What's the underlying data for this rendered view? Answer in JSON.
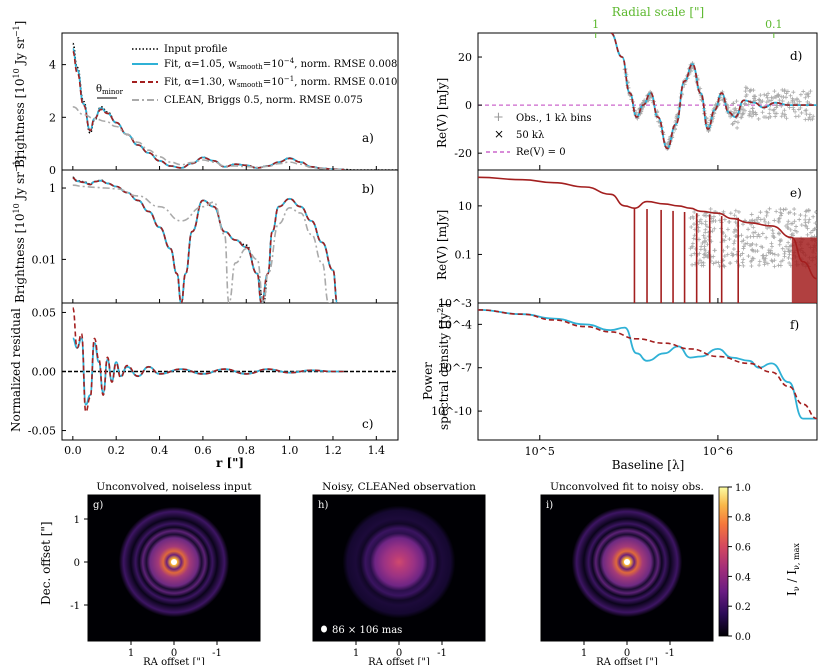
{
  "chart_data": [
    {
      "panel": "a",
      "type": "line",
      "ylabel": "Brightness [10^10 Jy sr^-1]",
      "xlim": [
        -0.05,
        1.5
      ],
      "ylim": [
        0,
        5.2
      ],
      "yticks": [
        "0",
        "2",
        "4"
      ],
      "annotation": "θminor",
      "legend": [
        {
          "label": "Input profile",
          "color": "#000000",
          "style": "dotted"
        },
        {
          "label": "Fit, α=1.05, wsmooth=10^-4, norm. RMSE 0.008",
          "color": "#2fb1d6",
          "style": "solid"
        },
        {
          "label": "Fit, α=1.30, wsmooth=10^-1, norm. RMSE 0.010",
          "color": "#a31f1f",
          "style": "dashed"
        },
        {
          "label": "CLEAN, Briggs 0.5, norm. RMSE 0.075",
          "color": "#aaaaaa",
          "style": "dashdot"
        }
      ],
      "series": [
        {
          "name": "Input profile",
          "x": [
            0.0,
            0.02,
            0.05,
            0.08,
            0.1,
            0.13,
            0.16,
            0.2,
            0.25,
            0.3,
            0.35,
            0.4,
            0.45,
            0.5,
            0.55,
            0.6,
            0.65,
            0.7,
            0.75,
            0.8,
            0.85,
            0.9,
            0.95,
            1.0,
            1.05,
            1.1,
            1.15,
            1.2,
            1.25,
            1.3,
            1.4,
            1.5
          ],
          "y": [
            4.8,
            3.9,
            2.6,
            1.4,
            1.9,
            2.4,
            2.2,
            1.8,
            1.35,
            0.95,
            0.65,
            0.35,
            0.15,
            0.08,
            0.25,
            0.48,
            0.35,
            0.12,
            0.22,
            0.18,
            0.08,
            0.15,
            0.3,
            0.45,
            0.3,
            0.12,
            0.06,
            0.03,
            0.02,
            0.0,
            0.0,
            0.0
          ]
        },
        {
          "name": "Fit, α=1.05",
          "x": [
            0.0,
            0.02,
            0.05,
            0.08,
            0.1,
            0.13,
            0.16,
            0.2,
            0.25,
            0.3,
            0.35,
            0.4,
            0.45,
            0.5,
            0.55,
            0.6,
            0.65,
            0.7,
            0.75,
            0.8,
            0.85,
            0.9,
            0.95,
            1.0,
            1.05,
            1.1,
            1.15,
            1.2,
            1.25
          ],
          "y": [
            4.6,
            3.8,
            2.5,
            1.5,
            1.95,
            2.35,
            2.15,
            1.8,
            1.35,
            0.95,
            0.65,
            0.35,
            0.15,
            0.08,
            0.25,
            0.48,
            0.35,
            0.12,
            0.22,
            0.18,
            0.08,
            0.15,
            0.3,
            0.45,
            0.3,
            0.12,
            0.06,
            0.03,
            0.02
          ]
        },
        {
          "name": "Fit, α=1.30",
          "x": [
            0.0,
            0.02,
            0.05,
            0.08,
            0.1,
            0.13,
            0.16,
            0.2,
            0.25,
            0.3,
            0.35,
            0.4,
            0.45,
            0.5,
            0.55,
            0.6,
            0.65,
            0.7,
            0.75,
            0.8,
            0.85,
            0.9,
            0.95,
            1.0,
            1.05,
            1.1,
            1.15,
            1.2,
            1.25
          ],
          "y": [
            4.5,
            3.7,
            2.45,
            1.5,
            1.95,
            2.3,
            2.15,
            1.8,
            1.35,
            0.95,
            0.65,
            0.35,
            0.15,
            0.08,
            0.25,
            0.47,
            0.35,
            0.12,
            0.22,
            0.18,
            0.08,
            0.15,
            0.3,
            0.44,
            0.3,
            0.12,
            0.06,
            0.03,
            0.02
          ]
        },
        {
          "name": "CLEAN",
          "x": [
            0.0,
            0.05,
            0.1,
            0.15,
            0.2,
            0.25,
            0.3,
            0.35,
            0.4,
            0.45,
            0.5,
            0.55,
            0.6,
            0.65,
            0.7,
            0.75,
            0.8,
            0.85,
            0.9,
            0.95,
            1.0,
            1.05,
            1.1,
            1.15,
            1.2,
            1.25
          ],
          "y": [
            2.4,
            2.1,
            1.95,
            1.85,
            1.65,
            1.35,
            1.05,
            0.75,
            0.5,
            0.3,
            0.2,
            0.28,
            0.38,
            0.3,
            0.15,
            0.15,
            0.13,
            0.1,
            0.14,
            0.24,
            0.3,
            0.22,
            0.1,
            0.05,
            0.02,
            0.01
          ]
        }
      ]
    },
    {
      "panel": "b",
      "type": "line",
      "ylabel": "Brightness [10^10 Jy sr^-1]",
      "yscale": "log",
      "ylim": [
        0.0006,
        3.2
      ],
      "yticks": [
        "1",
        "0.01"
      ],
      "series": [
        {
          "name": "Input profile",
          "x": [
            0.0,
            0.02,
            0.05,
            0.08,
            0.1,
            0.13,
            0.16,
            0.2,
            0.25,
            0.3,
            0.35,
            0.4,
            0.45,
            0.48,
            0.5,
            0.52,
            0.55,
            0.6,
            0.65,
            0.7,
            0.75,
            0.8,
            0.85,
            0.88,
            0.9,
            0.92,
            0.95,
            1.0,
            1.05,
            1.1,
            1.15,
            1.2,
            1.22
          ],
          "y": [
            2.0,
            1.6,
            1.5,
            1.3,
            1.5,
            1.65,
            1.35,
            1.1,
            0.75,
            0.45,
            0.22,
            0.08,
            0.02,
            0.004,
            0.0006,
            0.004,
            0.06,
            0.45,
            0.3,
            0.06,
            0.035,
            0.025,
            0.004,
            0.0006,
            0.004,
            0.06,
            0.3,
            0.5,
            0.3,
            0.12,
            0.03,
            0.005,
            0.0006
          ]
        },
        {
          "name": "Fit, α=1.05",
          "x": [
            0.0,
            0.02,
            0.05,
            0.08,
            0.1,
            0.13,
            0.16,
            0.2,
            0.25,
            0.3,
            0.35,
            0.4,
            0.45,
            0.48,
            0.5,
            0.52,
            0.55,
            0.6,
            0.65,
            0.7,
            0.75,
            0.8,
            0.85,
            0.87,
            0.9,
            0.92,
            0.95,
            1.0,
            1.05,
            1.1,
            1.15,
            1.2,
            1.22
          ],
          "y": [
            1.9,
            1.55,
            1.45,
            1.25,
            1.5,
            1.6,
            1.35,
            1.1,
            0.75,
            0.45,
            0.22,
            0.08,
            0.02,
            0.004,
            0.0006,
            0.004,
            0.06,
            0.45,
            0.3,
            0.06,
            0.035,
            0.022,
            0.004,
            0.0006,
            0.004,
            0.06,
            0.3,
            0.5,
            0.3,
            0.12,
            0.03,
            0.005,
            0.0006
          ]
        },
        {
          "name": "Fit, α=1.30",
          "x": [
            0.0,
            0.02,
            0.05,
            0.08,
            0.1,
            0.13,
            0.16,
            0.2,
            0.25,
            0.3,
            0.35,
            0.4,
            0.45,
            0.48,
            0.5,
            0.52,
            0.55,
            0.6,
            0.65,
            0.7,
            0.75,
            0.8,
            0.85,
            0.87,
            0.9,
            0.92,
            0.95,
            1.0,
            1.05,
            1.1,
            1.15,
            1.2,
            1.22
          ],
          "y": [
            1.9,
            1.55,
            1.45,
            1.25,
            1.5,
            1.6,
            1.35,
            1.1,
            0.75,
            0.45,
            0.22,
            0.08,
            0.02,
            0.004,
            0.0006,
            0.004,
            0.06,
            0.45,
            0.3,
            0.06,
            0.035,
            0.022,
            0.004,
            0.0006,
            0.004,
            0.06,
            0.3,
            0.5,
            0.3,
            0.12,
            0.03,
            0.005,
            0.0006
          ]
        },
        {
          "name": "CLEAN",
          "x": [
            0.0,
            0.05,
            0.1,
            0.15,
            0.2,
            0.3,
            0.4,
            0.5,
            0.6,
            0.65,
            0.7,
            0.72,
            0.75,
            0.8,
            0.85,
            0.88,
            0.9,
            0.95,
            1.0,
            1.05,
            1.1,
            1.15,
            1.18,
            1.2
          ],
          "y": [
            1.2,
            1.1,
            1.05,
            1.0,
            0.95,
            0.6,
            0.3,
            0.12,
            0.3,
            0.4,
            0.05,
            0.0006,
            0.008,
            0.02,
            0.01,
            0.0006,
            0.004,
            0.1,
            0.28,
            0.2,
            0.05,
            0.008,
            0.0006,
            0.0006
          ]
        }
      ]
    },
    {
      "panel": "c",
      "type": "line",
      "xlabel": "r [\"]",
      "ylabel": "Normalized residual",
      "ylim": [
        -0.058,
        0.058
      ],
      "yticks": [
        "0.05",
        "0.00",
        "-0.05"
      ],
      "xticks": [
        "0.0",
        "0.2",
        "0.4",
        "0.6",
        "0.8",
        "1.0",
        "1.2",
        "1.4"
      ],
      "series": [
        {
          "name": "Fit, α=1.05",
          "x": [
            0.0,
            0.02,
            0.04,
            0.06,
            0.08,
            0.1,
            0.12,
            0.14,
            0.16,
            0.18,
            0.2,
            0.22,
            0.25,
            0.3,
            0.35,
            0.4,
            0.5,
            0.6,
            0.7,
            0.8,
            0.9,
            1.0,
            1.1,
            1.2,
            1.25
          ],
          "y": [
            0.028,
            0.02,
            0.028,
            -0.028,
            -0.02,
            0.024,
            0.008,
            -0.018,
            0.01,
            -0.008,
            0.008,
            -0.004,
            0.004,
            -0.004,
            0.004,
            -0.002,
            0.002,
            -0.002,
            0.002,
            -0.002,
            0.002,
            -0.001,
            0.001,
            0.0,
            0.0
          ]
        },
        {
          "name": "Fit, α=1.30",
          "x": [
            0.0,
            0.02,
            0.04,
            0.06,
            0.08,
            0.1,
            0.12,
            0.14,
            0.16,
            0.18,
            0.2,
            0.22,
            0.25,
            0.3,
            0.35,
            0.4,
            0.5,
            0.6,
            0.7,
            0.8,
            0.9,
            1.0,
            1.1,
            1.2,
            1.25
          ],
          "y": [
            0.054,
            0.02,
            0.032,
            -0.034,
            -0.022,
            0.028,
            0.01,
            -0.02,
            0.012,
            -0.009,
            0.007,
            -0.005,
            0.005,
            -0.004,
            0.004,
            -0.002,
            0.002,
            -0.002,
            0.002,
            -0.002,
            0.002,
            -0.001,
            0.001,
            0.0,
            0.0
          ]
        }
      ],
      "reference_line": 0.0
    },
    {
      "panel": "d",
      "type": "scatter",
      "ylabel": "Re(V) [mJy]",
      "top_axis_label": "Radial scale [\"]",
      "top_ticks": [
        "1",
        "0.1"
      ],
      "yticks": [
        "20",
        "0",
        "-20"
      ],
      "ylim": [
        -27,
        30
      ],
      "legend": [
        {
          "label": "Obs., 1 kλ bins",
          "marker": "+",
          "color": "#aaaaaa"
        },
        {
          "label": "50 kλ",
          "marker": "x",
          "color": "#000000"
        },
        {
          "label": "Re(V) = 0",
          "color": "#cc66cc",
          "style": "dashed"
        }
      ],
      "series": [
        {
          "name": "Fit model",
          "x_kλ": [
            250,
            290,
            320,
            350,
            380,
            420,
            460,
            520,
            580,
            650,
            720,
            800,
            880,
            960,
            1050,
            1150,
            1250,
            1400,
            1600,
            1800,
            2100,
            2500,
            3000,
            3600
          ],
          "y": [
            30,
            20,
            5,
            -5,
            0,
            5,
            -5,
            -18,
            -8,
            10,
            17,
            5,
            -10,
            -2,
            5,
            -3,
            -5,
            2,
            1,
            -1,
            1,
            0,
            0,
            0
          ]
        }
      ]
    },
    {
      "panel": "e",
      "type": "line",
      "yscale": "log",
      "ylabel": "Re(V) [mJy]",
      "yticks": [
        "10",
        "0.1",
        "10^-3"
      ],
      "ylim": [
        0.001,
        300
      ],
      "series": [
        {
          "name": "Fit model",
          "x_kλ": [
            45,
            80,
            120,
            180,
            250,
            300,
            340,
            400,
            500,
            600,
            700,
            800,
            1000,
            1200,
            1500,
            2000,
            2600,
            3000,
            3600
          ],
          "y": [
            150,
            120,
            90,
            60,
            30,
            10,
            8,
            15,
            12,
            10,
            8,
            6,
            5,
            3,
            2,
            1.5,
            0.5,
            0.05,
            0.01
          ]
        }
      ]
    },
    {
      "panel": "f",
      "type": "line",
      "xlabel": "Baseline [λ]",
      "ylabel": "Power spectral density [Jy^2]",
      "yscale": "log",
      "xscale": "log",
      "xticks": [
        "10^5",
        "10^6"
      ],
      "yticks": [
        "10^-4",
        "10^-7",
        "10^-10"
      ],
      "ylim": [
        1e-12,
        0.003
      ],
      "series": [
        {
          "name": "Fit, α=1.05",
          "x_kλ": [
            45,
            80,
            120,
            180,
            250,
            300,
            350,
            400,
            500,
            600,
            700,
            800,
            1000,
            1200,
            1500,
            1700,
            2000,
            2500,
            3000,
            3600
          ],
          "y": [
            0.001,
            0.0005,
            0.00025,
            0.0001,
            4e-05,
            6e-05,
            1e-06,
            3e-07,
            1e-06,
            3e-06,
            5e-07,
            6e-07,
            2e-06,
            5e-07,
            3e-07,
            1e-07,
            2e-07,
            1e-08,
            3e-11,
            3e-11
          ]
        },
        {
          "name": "Fit, α=1.30",
          "x_kλ": [
            45,
            80,
            120,
            180,
            250,
            350,
            500,
            700,
            1000,
            1500,
            2000,
            2500,
            3000,
            3600
          ],
          "y": [
            0.001,
            0.0005,
            0.0002,
            7e-05,
            3e-05,
            1e-05,
            5e-06,
            2e-06,
            6e-07,
            2e-07,
            5e-08,
            5e-09,
            3e-10,
            3e-11
          ]
        }
      ]
    },
    {
      "panel": "images",
      "type": "heatmap",
      "titles": [
        "Unconvolved, noiseless input",
        "Noisy, CLEANed observation",
        "Unconvolved fit to noisy obs."
      ],
      "letters": [
        "g)",
        "h)",
        "i)"
      ],
      "beam_label": "86 × 106 mas",
      "xlabel": "RA offset [\"]",
      "ylabel": "Dec. offset [\"]",
      "ticks": [
        "1",
        "0",
        "-1"
      ],
      "colorbar_label": "Iν / Iν,max",
      "colorbar_ticks": [
        "1.0",
        "0.8",
        "0.6",
        "0.4",
        "0.2",
        "0.0"
      ]
    }
  ],
  "labels": {
    "a_ylabel": "Brightness [10",
    "a_ylabel_sup": "10",
    "a_ylabel_tail": " Jy sr",
    "a_ylabel_sup2": "−1",
    "bracket": "]",
    "c_ylabel": "Normalized residual",
    "c_xlabel": "r [\"]",
    "d_ylabel": "Re(V) [mJy]",
    "e_ylabel": "Re(V) [mJy]",
    "f_ylabel1": "Power",
    "f_ylabel2": "spectral density [Jy",
    "f_ylabel2_sup": "2",
    "f_xlabel": "Baseline [λ]",
    "top_axis": "Radial scale [\"]",
    "theta": "θ",
    "theta_sub": "minor",
    "leg_a": [
      "Input profile",
      "Fit, α=1.05, w",
      "smooth",
      "=10",
      "−4",
      ", norm. RMSE 0.008",
      "Fit, α=1.30, w",
      "smooth",
      "=10",
      "−1",
      ", norm. RMSE 0.010",
      "CLEAN, Briggs 0.5, norm. RMSE 0.075"
    ],
    "leg_d": [
      "Obs., 1 kλ bins",
      "50 kλ",
      "Re(V) = 0"
    ],
    "img_xlabel": "RA offset [\"]",
    "img_ylabel": "Dec. offset [\"]",
    "cb_label_main": "I",
    "cb_label_sub": "ν",
    "cb_label_mid": " / I",
    "cb_label_sub2": "ν, max"
  }
}
